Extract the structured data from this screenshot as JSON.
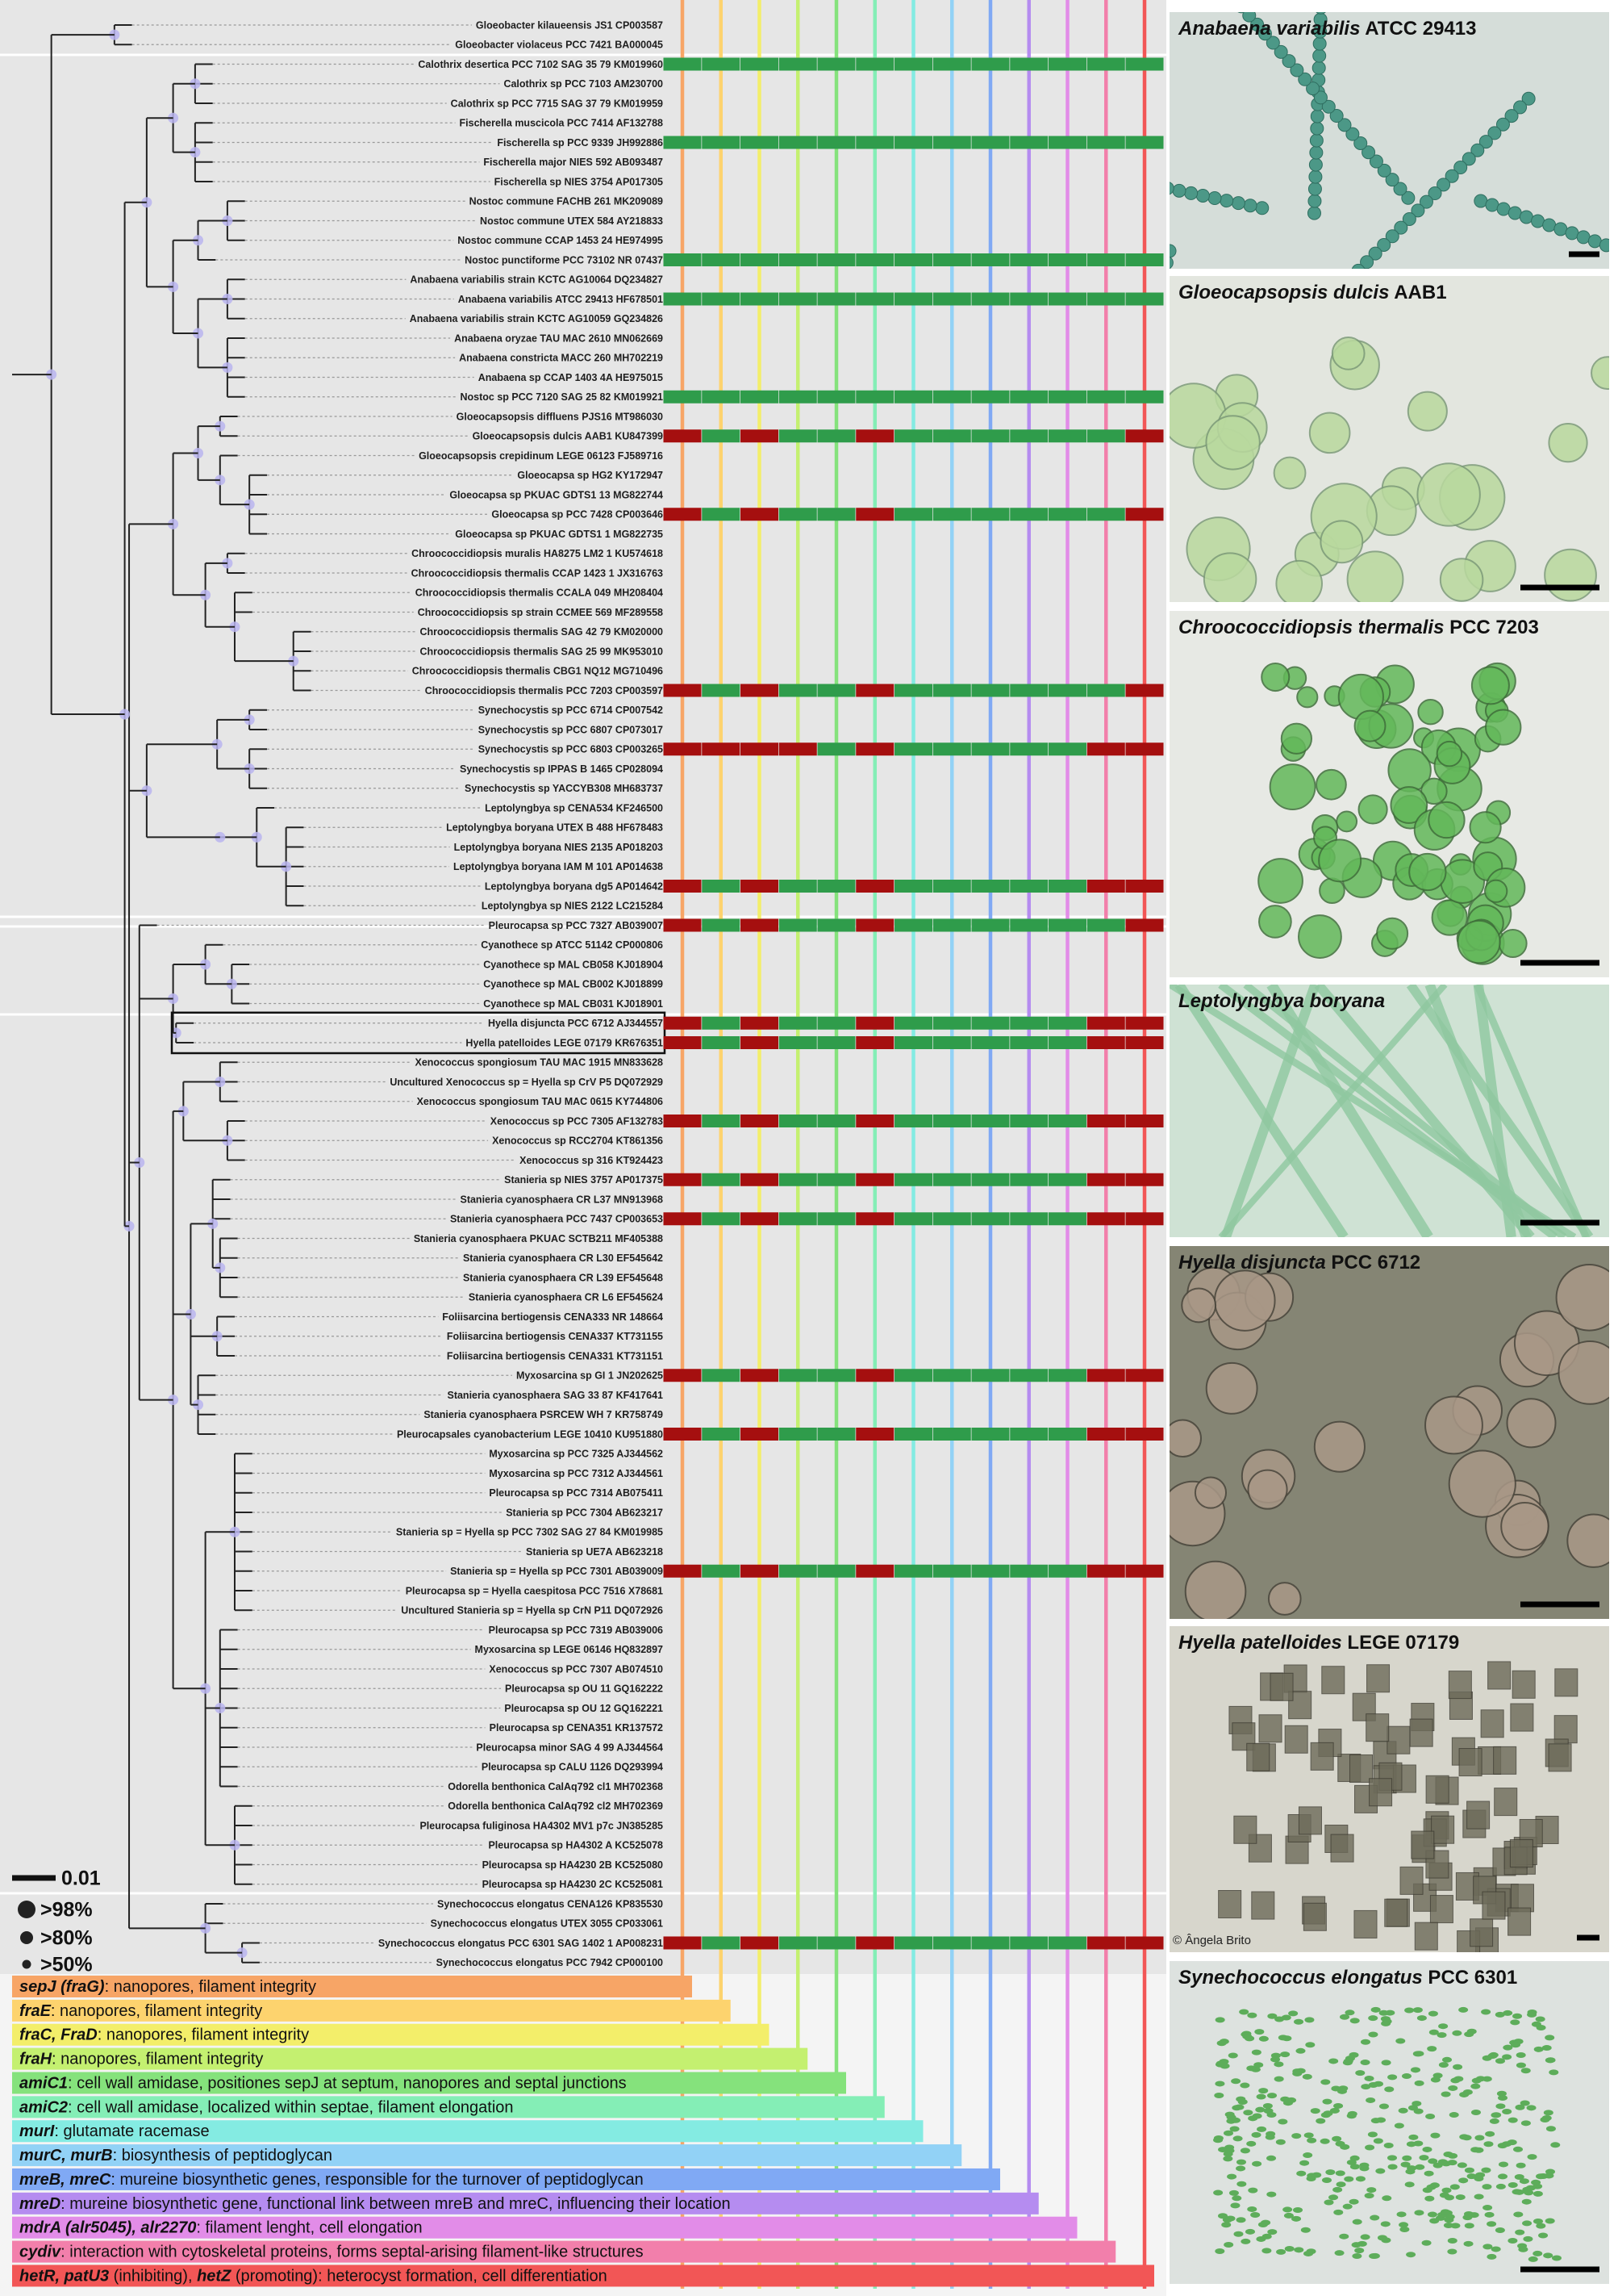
{
  "tree": {
    "scale_bar": "0.01",
    "support_legend": [
      ">98%",
      ">80%",
      ">50%"
    ]
  },
  "matrix_colors": {
    "present": "#2f9c4b",
    "absent": "#a50f0f"
  },
  "taxa": [
    {
      "label": "Gloeobacter kilaueensis JS1 CP003587"
    },
    {
      "label": "Gloeobacter violaceus PCC 7421 BA000045"
    },
    {
      "label": "Calothrix desertica PCC 7102 SAG 35 79 KM019960",
      "genes": [
        1,
        1,
        1,
        1,
        1,
        1,
        1,
        1,
        1,
        1,
        1,
        1,
        1
      ]
    },
    {
      "label": "Calothrix sp PCC 7103 AM230700"
    },
    {
      "label": "Calothrix sp PCC 7715 SAG 37 79 KM019959"
    },
    {
      "label": "Fischerella muscicola PCC 7414 AF132788"
    },
    {
      "label": "Fischerella sp PCC 9339 JH992886",
      "genes": [
        1,
        1,
        1,
        1,
        1,
        1,
        1,
        1,
        1,
        1,
        1,
        1,
        1
      ]
    },
    {
      "label": "Fischerella major NIES 592 AB093487"
    },
    {
      "label": "Fischerella sp NIES 3754 AP017305"
    },
    {
      "label": "Nostoc commune FACHB 261 MK209089"
    },
    {
      "label": "Nostoc commune UTEX 584 AY218833"
    },
    {
      "label": "Nostoc commune CCAP 1453 24 HE974995"
    },
    {
      "label": "Nostoc punctiforme PCC 73102 NR 07437",
      "genes": [
        1,
        1,
        1,
        1,
        1,
        1,
        1,
        1,
        1,
        1,
        1,
        1,
        1
      ]
    },
    {
      "label": "Anabaena variabilis strain KCTC AG10064 DQ234827"
    },
    {
      "label": "Anabaena variabilis ATCC 29413 HF678501",
      "genes": [
        1,
        1,
        1,
        1,
        1,
        1,
        1,
        1,
        1,
        1,
        1,
        1,
        1
      ]
    },
    {
      "label": "Anabaena variabilis strain KCTC AG10059 GQ234826"
    },
    {
      "label": "Anabaena oryzae TAU MAC 2610 MN062669"
    },
    {
      "label": "Anabaena constricta MACC 260 MH702219"
    },
    {
      "label": "Anabaena sp CCAP 1403 4A HE975015"
    },
    {
      "label": "Nostoc sp PCC 7120 SAG 25 82 KM019921",
      "genes": [
        1,
        1,
        1,
        1,
        1,
        1,
        1,
        1,
        1,
        1,
        1,
        1,
        1
      ]
    },
    {
      "label": "Gloeocapsopsis diffluens PJS16 MT986030"
    },
    {
      "label": "Gloeocapsopsis dulcis AAB1 KU847399",
      "genes": [
        0,
        1,
        0,
        1,
        1,
        0,
        1,
        1,
        1,
        1,
        1,
        1,
        0
      ]
    },
    {
      "label": "Gloeocapsopsis crepidinum LEGE 06123 FJ589716"
    },
    {
      "label": "Gloeocapsa sp HG2 KY172947"
    },
    {
      "label": "Gloeocapsa sp PKUAC GDTS1 13 MG822744"
    },
    {
      "label": "Gloeocapsa sp PCC 7428 CP003646",
      "genes": [
        0,
        1,
        0,
        1,
        1,
        0,
        1,
        1,
        1,
        1,
        1,
        1,
        0
      ]
    },
    {
      "label": "Gloeocapsa sp PKUAC GDTS1 1 MG822735"
    },
    {
      "label": "Chroococcidiopsis muralis HA8275 LM2 1 KU574618"
    },
    {
      "label": "Chroococcidiopsis thermalis CCAP 1423 1 JX316763"
    },
    {
      "label": "Chroococcidiopsis thermalis CCALA 049 MH208404"
    },
    {
      "label": "Chroococcidiopsis sp strain CCMEE 569 MF289558"
    },
    {
      "label": "Chroococcidiopsis thermalis SAG 42 79 KM020000"
    },
    {
      "label": "Chroococcidiopsis thermalis SAG 25 99 MK953010"
    },
    {
      "label": "Chroococcidiopsis thermalis CBG1 NQ12 MG710496"
    },
    {
      "label": "Chroococcidiopsis thermalis PCC 7203 CP003597",
      "genes": [
        0,
        1,
        0,
        1,
        1,
        0,
        1,
        1,
        1,
        1,
        1,
        1,
        0
      ]
    },
    {
      "label": "Synechocystis sp PCC 6714 CP007542"
    },
    {
      "label": "Synechocystis sp PCC 6807 CP073017"
    },
    {
      "label": "Synechocystis sp PCC 6803 CP003265",
      "genes": [
        0,
        0,
        0,
        0,
        1,
        0,
        1,
        1,
        1,
        1,
        1,
        0,
        0
      ]
    },
    {
      "label": "Synechocystis sp IPPAS B 1465 CP028094"
    },
    {
      "label": "Synechocystis sp YACCYB308 MH683737"
    },
    {
      "label": "Leptolyngbya sp CENA534 KF246500"
    },
    {
      "label": "Leptolyngbya boryana UTEX B 488 HF678483"
    },
    {
      "label": "Leptolyngbya boryana NIES 2135 AP018203"
    },
    {
      "label": "Leptolyngbya boryana IAM M 101 AP014638"
    },
    {
      "label": "Leptolyngbya boryana dg5 AP014642",
      "genes": [
        0,
        1,
        0,
        1,
        1,
        0,
        1,
        1,
        1,
        1,
        1,
        0,
        0
      ]
    },
    {
      "label": "Leptolyngbya sp NIES 2122 LC215284"
    },
    {
      "label": "Pleurocapsa sp PCC 7327 AB039007",
      "genes": [
        0,
        1,
        0,
        1,
        1,
        0,
        1,
        1,
        1,
        1,
        1,
        1,
        0
      ]
    },
    {
      "label": "Cyanothece sp ATCC 51142 CP000806"
    },
    {
      "label": "Cyanothece sp MAL CB058 KJ018904"
    },
    {
      "label": "Cyanothece sp MAL CB002 KJ018899"
    },
    {
      "label": "Cyanothece sp MAL CB031 KJ018901"
    },
    {
      "label": "Hyella disjuncta PCC 6712 AJ344557",
      "genes": [
        0,
        1,
        0,
        1,
        1,
        0,
        1,
        1,
        1,
        1,
        1,
        0,
        0
      ]
    },
    {
      "label": "Hyella patelloides LEGE 07179 KR676351",
      "genes": [
        0,
        1,
        0,
        1,
        1,
        0,
        1,
        1,
        1,
        1,
        1,
        0,
        0
      ]
    },
    {
      "label": "Xenococcus spongiosum TAU MAC 1915 MN833628"
    },
    {
      "label": "Uncultured Xenococcus sp = Hyella sp CrV P5 DQ072929"
    },
    {
      "label": "Xenococcus spongiosum TAU MAC 0615 KY744806"
    },
    {
      "label": "Xenococcus sp PCC 7305 AF132783",
      "genes": [
        0,
        1,
        0,
        1,
        1,
        0,
        1,
        1,
        1,
        1,
        1,
        0,
        0
      ]
    },
    {
      "label": "Xenococcus sp RCC2704 KT861356"
    },
    {
      "label": "Xenococcus sp 316 KT924423"
    },
    {
      "label": "Stanieria sp NIES 3757 AP017375",
      "genes": [
        0,
        1,
        0,
        1,
        1,
        0,
        1,
        1,
        1,
        1,
        1,
        0,
        0
      ]
    },
    {
      "label": "Stanieria cyanosphaera CR L37 MN913968"
    },
    {
      "label": "Stanieria cyanosphaera PCC 7437 CP003653",
      "genes": [
        0,
        1,
        0,
        1,
        1,
        0,
        1,
        1,
        1,
        1,
        1,
        0,
        0
      ]
    },
    {
      "label": "Stanieria cyanosphaera PKUAC SCTB211 MF405388"
    },
    {
      "label": "Stanieria cyanosphaera CR L30 EF545642"
    },
    {
      "label": "Stanieria cyanosphaera CR L39 EF545648"
    },
    {
      "label": "Stanieria cyanosphaera CR L6 EF545624"
    },
    {
      "label": "Foliisarcina bertiogensis CENA333 NR 148664"
    },
    {
      "label": "Foliisarcina bertiogensis CENA337 KT731155"
    },
    {
      "label": "Foliisarcina bertiogensis CENA331 KT731151"
    },
    {
      "label": "Myxosarcina sp GI 1 JN202625",
      "genes": [
        0,
        1,
        0,
        1,
        1,
        0,
        1,
        1,
        1,
        1,
        1,
        0,
        0
      ]
    },
    {
      "label": "Stanieria cyanosphaera SAG 33 87 KF417641"
    },
    {
      "label": "Stanieria cyanosphaera PSRCEW WH 7 KR758749"
    },
    {
      "label": "Pleurocapsales cyanobacterium LEGE 10410 KU951880",
      "genes": [
        0,
        1,
        0,
        1,
        1,
        0,
        1,
        1,
        1,
        1,
        1,
        0,
        0
      ]
    },
    {
      "label": "Myxosarcina sp PCC 7325 AJ344562"
    },
    {
      "label": "Myxosarcina sp PCC 7312 AJ344561"
    },
    {
      "label": "Pleurocapsa sp PCC 7314 AB075411"
    },
    {
      "label": "Stanieria sp PCC 7304 AB623217"
    },
    {
      "label": "Stanieria sp = Hyella sp PCC 7302 SAG 27 84 KM019985"
    },
    {
      "label": "Stanieria sp UE7A AB623218"
    },
    {
      "label": "Stanieria sp = Hyella sp PCC 7301 AB039009",
      "genes": [
        0,
        1,
        0,
        1,
        1,
        0,
        1,
        1,
        1,
        1,
        1,
        0,
        0
      ]
    },
    {
      "label": "Pleurocapsa sp = Hyella caespitosa PCC 7516 X78681"
    },
    {
      "label": "Uncultured Stanieria sp = Hyella sp CrN P11 DQ072926"
    },
    {
      "label": "Pleurocapsa sp PCC 7319 AB039006"
    },
    {
      "label": "Myxosarcina sp LEGE 06146 HQ832897"
    },
    {
      "label": "Xenococcus sp PCC 7307 AB074510"
    },
    {
      "label": "Pleurocapsa sp OU 11 GQ162222"
    },
    {
      "label": "Pleurocapsa sp OU 12 GQ162221"
    },
    {
      "label": "Pleurocapsa sp CENA351 KR137572"
    },
    {
      "label": "Pleurocapsa minor SAG 4 99 AJ344564"
    },
    {
      "label": "Pleurocapsa sp CALU 1126 DQ293994"
    },
    {
      "label": "Odorella benthonica CalAq792 cl1 MH702368"
    },
    {
      "label": "Odorella benthonica CalAq792 cl2 MH702369"
    },
    {
      "label": "Pleurocapsa fuliginosa HA4302 MV1 p7c JN385285"
    },
    {
      "label": "Pleurocapsa sp HA4302 A KC525078"
    },
    {
      "label": "Pleurocapsa sp HA4230 2B KC525080"
    },
    {
      "label": "Pleurocapsa sp HA4230 2C KC525081"
    },
    {
      "label": "Synechococcus elongatus CENA126 KP835530"
    },
    {
      "label": "Synechococcus elongatus UTEX 3055 CP033061"
    },
    {
      "label": "Synechococcus elongatus PCC 6301 SAG 1402 1 AP008231",
      "genes": [
        0,
        1,
        0,
        1,
        1,
        0,
        1,
        1,
        1,
        1,
        1,
        0,
        0
      ]
    },
    {
      "label": "Synechococcus elongatus PCC 7942 CP000100"
    }
  ],
  "genes": [
    {
      "color": "#f7a566",
      "parts": [
        {
          "text": "sepJ (fraG)",
          "em": true
        },
        {
          "text": ": nanopores, filament integrity"
        }
      ]
    },
    {
      "color": "#fdd36e",
      "parts": [
        {
          "text": "fraE",
          "em": true
        },
        {
          "text": ": nanopores, filament integrity"
        }
      ]
    },
    {
      "color": "#f3ee6a",
      "parts": [
        {
          "text": "fraC, FraD",
          "em": true
        },
        {
          "text": ": nanopores, filament integrity"
        }
      ]
    },
    {
      "color": "#c4f070",
      "parts": [
        {
          "text": "fraH",
          "em": true
        },
        {
          "text": ": nanopores, filament integrity"
        }
      ]
    },
    {
      "color": "#85e27c",
      "parts": [
        {
          "text": "amiC1",
          "em": true
        },
        {
          "text": ": cell wall amidase, positiones sepJ at septum, nanopores and septal junctions"
        }
      ]
    },
    {
      "color": "#84eeb6",
      "parts": [
        {
          "text": "amiC2",
          "em": true
        },
        {
          "text": ": cell wall amidase, localized within septae, filament elongation"
        }
      ]
    },
    {
      "color": "#84ebe2",
      "parts": [
        {
          "text": "murI",
          "em": true
        },
        {
          "text": ": glutamate racemase"
        }
      ]
    },
    {
      "color": "#92d2f6",
      "parts": [
        {
          "text": "murC, murB",
          "em": true
        },
        {
          "text": ": biosynthesis of peptidoglycan"
        }
      ]
    },
    {
      "color": "#80a9f4",
      "parts": [
        {
          "text": "mreB, mreC",
          "em": true
        },
        {
          "text": ": mureine biosynthetic genes, responsible for the turnover of peptidoglycan"
        }
      ]
    },
    {
      "color": "#b58cf0",
      "parts": [
        {
          "text": "mreD",
          "em": true
        },
        {
          "text": ": mureine biosynthetic gene, functional link between mreB and mreC, influencing their location"
        }
      ]
    },
    {
      "color": "#e28ce8",
      "parts": [
        {
          "text": "mdrA (alr5045), alr2270",
          "em": true
        },
        {
          "text": ": filament lenght, cell elongation"
        }
      ]
    },
    {
      "color": "#f27fab",
      "parts": [
        {
          "text": "cydiv",
          "em": true
        },
        {
          "text": ": interaction with cytoskeletal proteins, forms septal-arising filament-like structures"
        }
      ]
    },
    {
      "color": "#f25656",
      "parts": [
        {
          "text": "hetR, patU3",
          "em": true
        },
        {
          "text": " (inhibiting), "
        },
        {
          "text": "hetZ",
          "em": true
        },
        {
          "text": " (promoting): heterocyst formation, cell differentiation"
        }
      ]
    }
  ],
  "photos": [
    {
      "species": "Anabaena variabilis",
      "strain": " ATCC 29413"
    },
    {
      "species": "Gloeocapsopsis dulcis",
      "strain": " AAB1"
    },
    {
      "species": "Chroococcidiopsis thermalis",
      "strain": " PCC 7203"
    },
    {
      "species": "Leptolyngbya boryana",
      "strain": ""
    },
    {
      "species": "Hyella disjuncta",
      "strain": " PCC 6712"
    },
    {
      "species": "Hyella patelloides",
      "strain": " LEGE 07179",
      "credit": "© Ângela Brito"
    },
    {
      "species": "Synechococcus elongatus",
      "strain": " PCC 6301"
    }
  ]
}
